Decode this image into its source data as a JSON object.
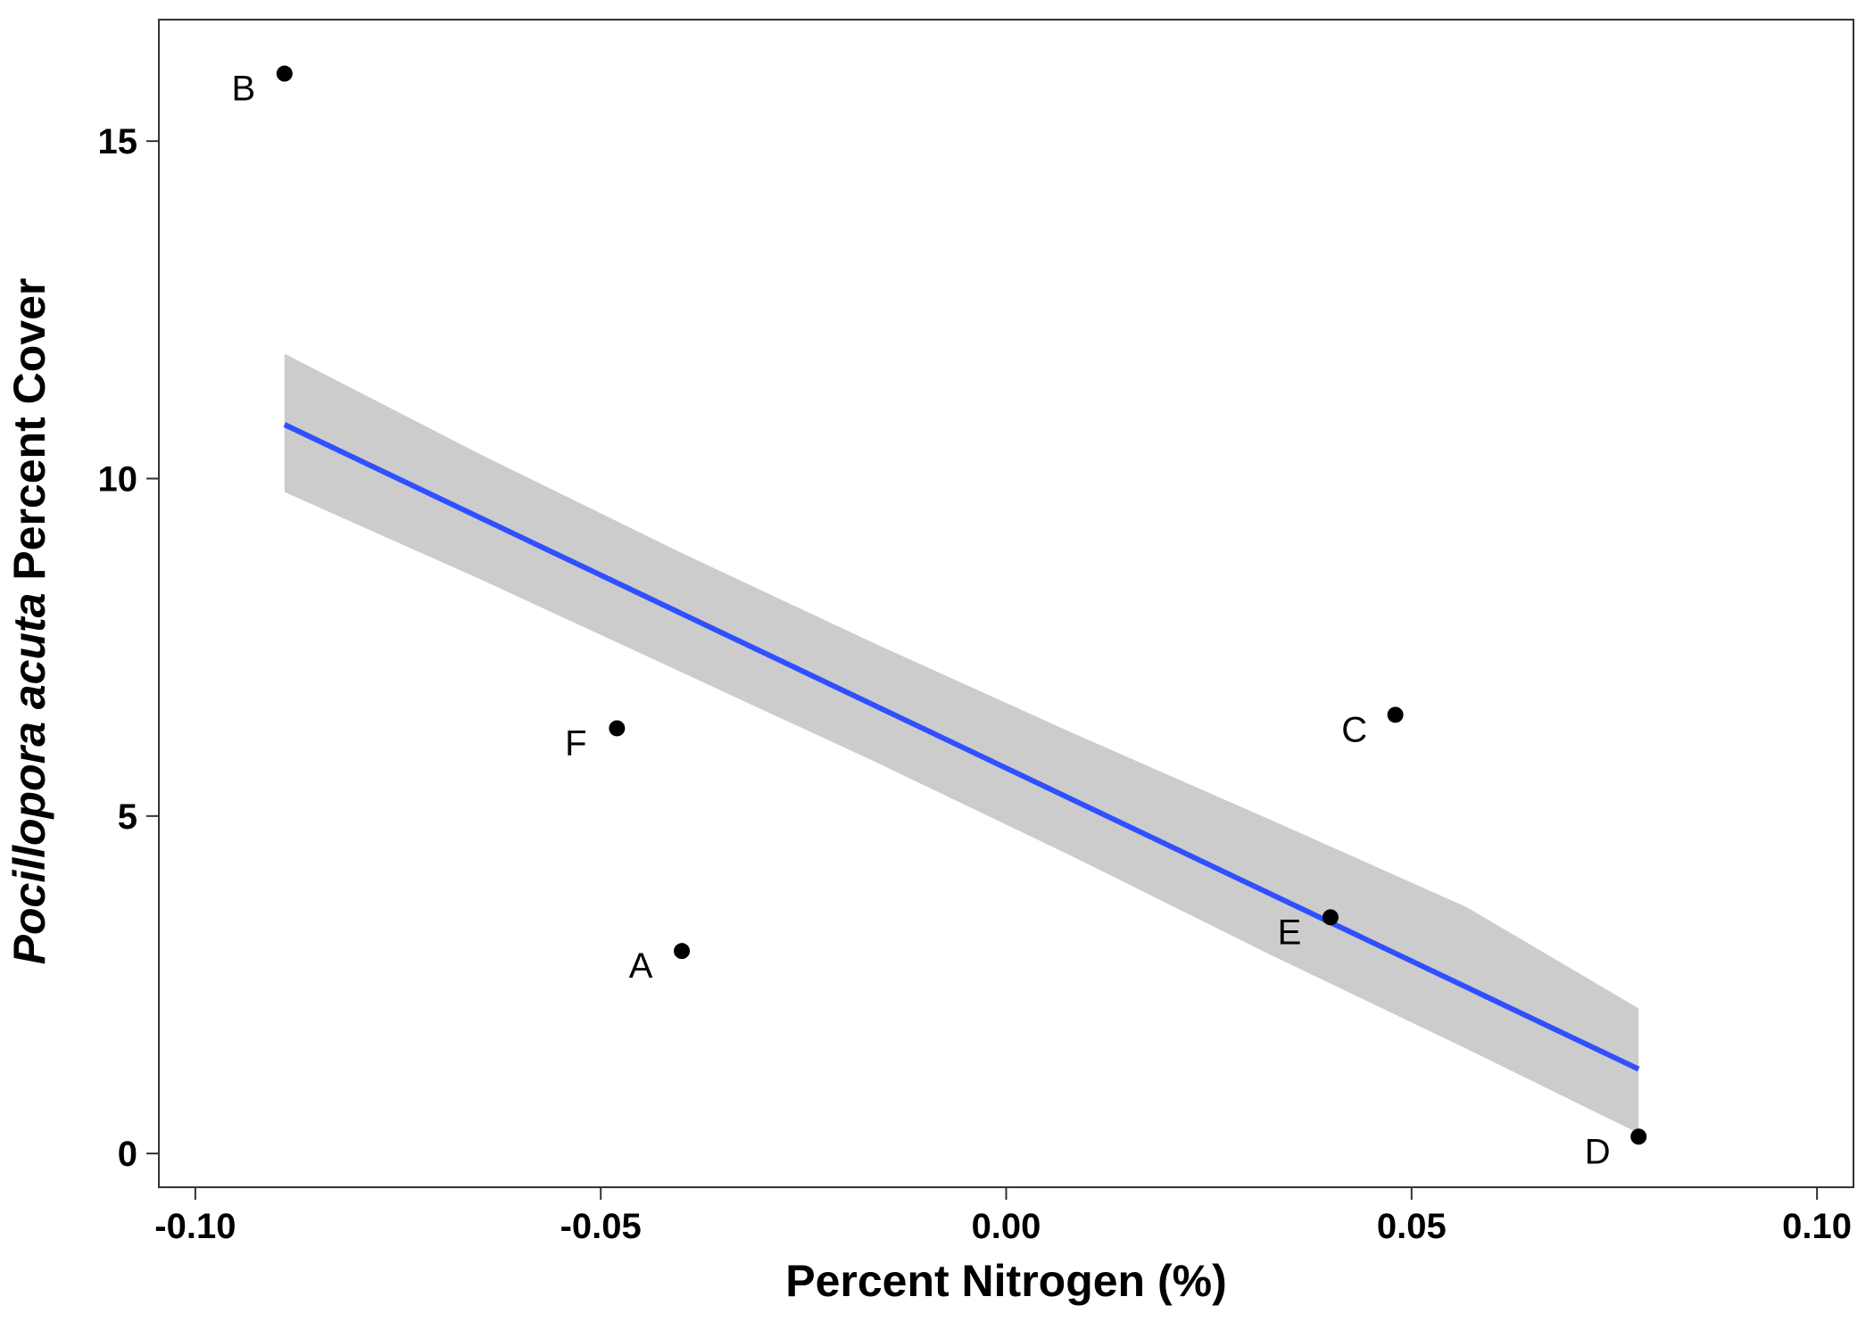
{
  "chart_data": {
    "type": "scatter",
    "title": "",
    "xlabel": "Percent Nitrogen (%)",
    "ylabel_italic": "Pocillopora acuta",
    "ylabel_rest": " Percent Cover",
    "xlim": [
      -0.1045,
      0.1045
    ],
    "ylim": [
      -0.5,
      16.8
    ],
    "x_ticks": [
      -0.1,
      -0.05,
      0.0,
      0.05,
      0.1
    ],
    "x_tick_labels": [
      "-0.10",
      "-0.05",
      "0.00",
      "0.05",
      "0.10"
    ],
    "y_ticks": [
      0,
      5,
      10,
      15
    ],
    "y_tick_labels": [
      "0",
      "5",
      "10",
      "15"
    ],
    "grid": false,
    "points": [
      {
        "label": "A",
        "x": -0.04,
        "y": 3.0
      },
      {
        "label": "B",
        "x": -0.089,
        "y": 16.0
      },
      {
        "label": "C",
        "x": 0.048,
        "y": 6.5
      },
      {
        "label": "D",
        "x": 0.078,
        "y": 0.25
      },
      {
        "label": "E",
        "x": 0.04,
        "y": 3.5
      },
      {
        "label": "F",
        "x": -0.048,
        "y": 6.3
      }
    ],
    "fit": {
      "x": [
        -0.089,
        0.078
      ],
      "y": [
        10.8,
        1.25
      ],
      "ci_upper": [
        11.85,
        2.15
      ],
      "ci_lower": [
        9.8,
        0.3
      ],
      "ci_x": [
        -0.089,
        -0.0647,
        -0.0404,
        -0.0161,
        0.0082,
        0.0325,
        0.0568,
        0.078
      ],
      "ci_upper_curve": [
        11.85,
        10.35,
        8.92,
        7.55,
        6.23,
        4.95,
        3.65,
        2.15
      ],
      "ci_lower_curve": [
        9.8,
        8.5,
        7.15,
        5.8,
        4.4,
        2.95,
        1.55,
        0.3
      ]
    },
    "colors": {
      "fit_line": "#3050FF",
      "ci_band": "#CCCCCC",
      "points": "#000000",
      "axes": "#333333"
    }
  }
}
